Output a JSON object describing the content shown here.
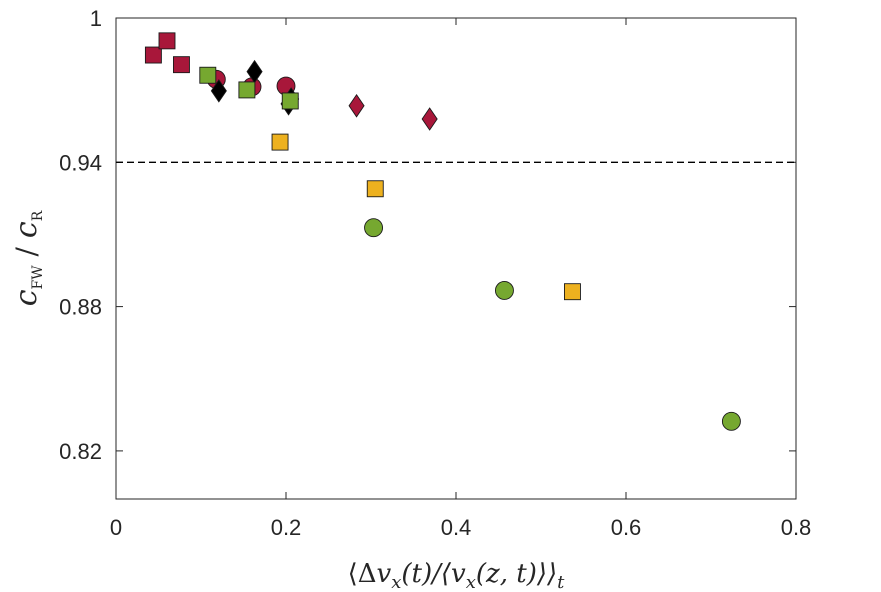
{
  "chart_data": {
    "type": "scatter",
    "title": "",
    "xlabel": "⟨Δv_x(t)/⟨v_x(z,t)⟩⟩_t",
    "ylabel": "c_FW / c_R",
    "xlabel_parts": {
      "open": "⟨Δ",
      "v": "v",
      "x1": "x",
      "mid1": "(t)/⟨",
      "v2": "v",
      "x2": "x",
      "mid2": "(z, t)⟩⟩",
      "t": "t"
    },
    "ylabel_parts": {
      "c1": "c",
      "sub1": "FW",
      "slash": " / ",
      "c2": "c",
      "sub2": "R"
    },
    "xlim": [
      0,
      0.8
    ],
    "ylim": [
      0.8,
      1.0
    ],
    "xticks": [
      0,
      0.2,
      0.4,
      0.6,
      0.8
    ],
    "xtick_labels": [
      "0",
      "0.2",
      "0.4",
      "0.6",
      "0.8"
    ],
    "yticks": [
      0.82,
      0.88,
      0.94,
      1.0
    ],
    "ytick_labels": [
      "0.82",
      "0.88",
      "0.94",
      "1"
    ],
    "reference_line": {
      "y": 0.94,
      "style": "dashed",
      "color": "#000000"
    },
    "grid": false,
    "series": [
      {
        "name": "crimson-squares",
        "marker": "square",
        "color": "#a8173a",
        "points": [
          [
            0.044,
            0.9846
          ],
          [
            0.06,
            0.9905
          ],
          [
            0.077,
            0.9806
          ]
        ]
      },
      {
        "name": "crimson-circles",
        "marker": "circle",
        "color": "#a8173a",
        "points": [
          [
            0.118,
            0.9745
          ],
          [
            0.16,
            0.9714
          ],
          [
            0.2,
            0.9717
          ]
        ]
      },
      {
        "name": "black-diamonds",
        "marker": "diamond",
        "color": "#000000",
        "points": [
          [
            0.121,
            0.9697
          ],
          [
            0.163,
            0.9777
          ],
          [
            0.203,
            0.9643
          ],
          [
            0.206,
            0.9663
          ]
        ]
      },
      {
        "name": "crimson-diamonds",
        "marker": "diamond",
        "color": "#a8173a",
        "points": [
          [
            0.283,
            0.9635
          ],
          [
            0.369,
            0.958
          ]
        ]
      },
      {
        "name": "green-squares",
        "marker": "square",
        "color": "#76a830",
        "points": [
          [
            0.108,
            0.9762
          ],
          [
            0.154,
            0.9701
          ],
          [
            0.205,
            0.9655
          ]
        ]
      },
      {
        "name": "amber-squares",
        "marker": "square",
        "color": "#edb11f",
        "points": [
          [
            0.193,
            0.9484
          ],
          [
            0.305,
            0.929
          ],
          [
            0.537,
            0.8862
          ]
        ]
      },
      {
        "name": "green-circles",
        "marker": "circle",
        "color": "#76a830",
        "points": [
          [
            0.303,
            0.9128
          ],
          [
            0.457,
            0.8867
          ],
          [
            0.724,
            0.8323
          ]
        ]
      }
    ]
  }
}
